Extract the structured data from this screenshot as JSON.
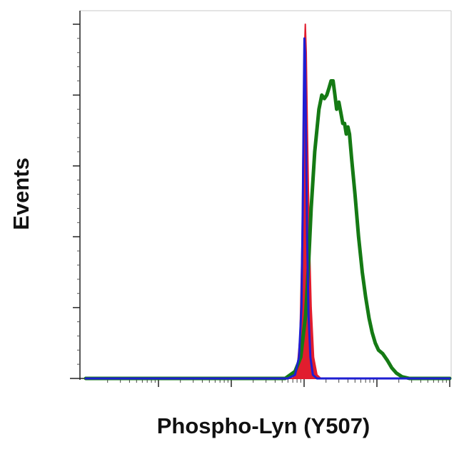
{
  "chart_data": {
    "type": "area",
    "title": "",
    "xlabel": "Phospho-Lyn (Y507)",
    "ylabel": "Events",
    "x_scale": "log",
    "xlim": [
      0.1,
      10000
    ],
    "ylim": [
      0,
      100
    ],
    "x_major_ticks": [
      1,
      10,
      100,
      1000,
      10000
    ],
    "y_major_ticks": [
      20,
      40,
      60,
      80,
      100
    ],
    "grid": false,
    "legend": "none",
    "series": [
      {
        "color": "#1e1ed2",
        "fill": false,
        "points": [
          [
            0.1,
            0
          ],
          [
            60,
            0
          ],
          [
            75,
            1
          ],
          [
            85,
            6
          ],
          [
            92,
            20
          ],
          [
            96,
            50
          ],
          [
            99,
            80
          ],
          [
            101,
            96
          ],
          [
            103,
            92
          ],
          [
            106,
            70
          ],
          [
            110,
            40
          ],
          [
            115,
            18
          ],
          [
            122,
            6
          ],
          [
            132,
            1
          ],
          [
            150,
            0
          ],
          [
            10000,
            0
          ]
        ]
      },
      {
        "color": "#e11d2e",
        "fill": true,
        "points": [
          [
            0.1,
            0
          ],
          [
            70,
            0
          ],
          [
            80,
            2
          ],
          [
            88,
            12
          ],
          [
            94,
            40
          ],
          [
            98,
            75
          ],
          [
            101,
            92
          ],
          [
            104,
            100
          ],
          [
            107,
            92
          ],
          [
            111,
            70
          ],
          [
            117,
            42
          ],
          [
            125,
            20
          ],
          [
            135,
            6
          ],
          [
            150,
            1
          ],
          [
            170,
            0
          ],
          [
            10000,
            0
          ]
        ]
      },
      {
        "color": "#157a14",
        "fill": false,
        "points": [
          [
            0.1,
            0
          ],
          [
            55,
            0
          ],
          [
            75,
            2
          ],
          [
            90,
            6
          ],
          [
            105,
            18
          ],
          [
            115,
            32
          ],
          [
            125,
            48
          ],
          [
            140,
            64
          ],
          [
            160,
            76
          ],
          [
            175,
            80
          ],
          [
            190,
            79
          ],
          [
            205,
            80
          ],
          [
            220,
            82
          ],
          [
            235,
            84
          ],
          [
            250,
            84
          ],
          [
            265,
            80
          ],
          [
            280,
            76
          ],
          [
            300,
            78
          ],
          [
            320,
            75
          ],
          [
            340,
            72
          ],
          [
            360,
            72
          ],
          [
            380,
            69
          ],
          [
            400,
            71
          ],
          [
            420,
            69
          ],
          [
            450,
            62
          ],
          [
            500,
            52
          ],
          [
            560,
            40
          ],
          [
            630,
            30
          ],
          [
            700,
            23
          ],
          [
            780,
            17
          ],
          [
            860,
            13
          ],
          [
            950,
            10
          ],
          [
            1050,
            8
          ],
          [
            1200,
            7
          ],
          [
            1400,
            5
          ],
          [
            1600,
            3
          ],
          [
            1850,
            1.5
          ],
          [
            2200,
            0.5
          ],
          [
            2800,
            0
          ],
          [
            10000,
            0
          ]
        ]
      }
    ]
  }
}
